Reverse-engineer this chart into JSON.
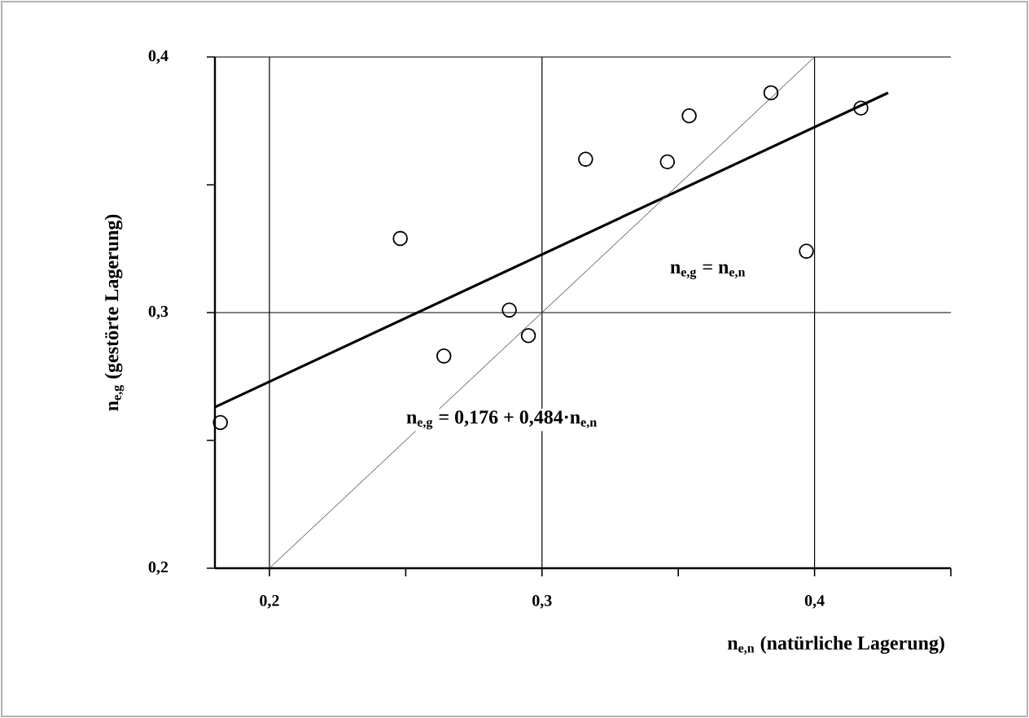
{
  "chart_data": {
    "type": "scatter",
    "xlabel": "n$_{e,n}$ (natürliche Lagerung)",
    "ylabel": "n$_{e,g}$ (gestörte Lagerung)",
    "xlim": [
      0.18,
      0.45
    ],
    "ylim": [
      0.2,
      0.4
    ],
    "xticks": [
      {
        "value": 0.2,
        "label": "0,2"
      },
      {
        "value": 0.25,
        "label": null
      },
      {
        "value": 0.3,
        "label": "0,3"
      },
      {
        "value": 0.35,
        "label": null
      },
      {
        "value": 0.4,
        "label": "0,4"
      },
      {
        "value": 0.45,
        "label": null
      }
    ],
    "yticks": [
      {
        "value": 0.2,
        "label": "0,2"
      },
      {
        "value": 0.25,
        "label": null
      },
      {
        "value": 0.3,
        "label": "0,3"
      },
      {
        "value": 0.35,
        "label": null
      },
      {
        "value": 0.4,
        "label": "0,4"
      }
    ],
    "grid": true,
    "series": [
      {
        "marker": "circle",
        "color": "#000000",
        "x": [
          0.182,
          0.248,
          0.264,
          0.288,
          0.295,
          0.316,
          0.346,
          0.354,
          0.384,
          0.397,
          0.417
        ],
        "values": [
          0.257,
          0.329,
          0.283,
          0.301,
          0.291,
          0.36,
          0.359,
          0.377,
          0.386,
          0.324,
          0.38
        ]
      },
      {
        "type": "line",
        "color": "#000000",
        "x": [
          0.18,
          0.427
        ],
        "values": [
          0.263,
          0.386
        ]
      },
      {
        "type": "line",
        "color": "#555555",
        "x": [
          0.2,
          0.4
        ],
        "values": [
          0.2,
          0.4
        ]
      }
    ],
    "annotations": [
      "n$_{e,g}$ = 0,176 + 0,484·n$_{e,n}$",
      "n$_{e,g}$ = n$_{e,n}$"
    ]
  }
}
